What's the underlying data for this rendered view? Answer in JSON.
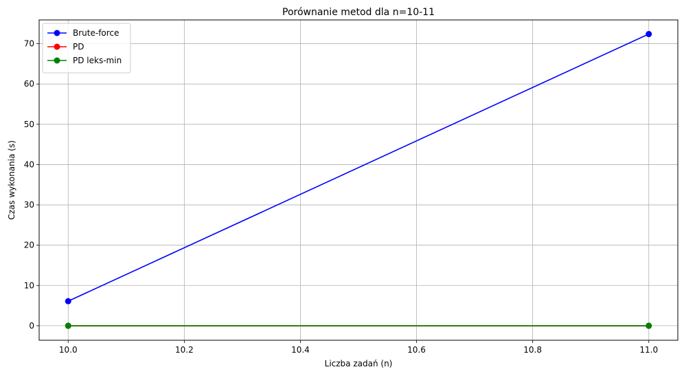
{
  "chart_data": {
    "type": "line",
    "title": "Porównanie metod dla n=10-11",
    "xlabel": "Liczba zadań (n)",
    "ylabel": "Czas wykonania (s)",
    "x": [
      10.0,
      11.0
    ],
    "xlim": [
      9.95,
      11.05
    ],
    "ylim": [
      -3.6,
      75.9
    ],
    "xticks": [
      10.0,
      10.2,
      10.4,
      10.6,
      10.8,
      11.0
    ],
    "xtick_labels": [
      "10.0",
      "10.2",
      "10.4",
      "10.6",
      "10.8",
      "11.0"
    ],
    "yticks": [
      0,
      10,
      20,
      30,
      40,
      50,
      60,
      70
    ],
    "ytick_labels": [
      "0",
      "10",
      "20",
      "30",
      "40",
      "50",
      "60",
      "70"
    ],
    "grid": true,
    "legend_position": "top-left",
    "series": [
      {
        "name": "Brute-force",
        "values": [
          6.1,
          72.4
        ],
        "color": "#0000ff"
      },
      {
        "name": "PD",
        "values": [
          0.0,
          0.0
        ],
        "color": "#ff0000"
      },
      {
        "name": "PD leks-min",
        "values": [
          0.0,
          0.0
        ],
        "color": "#008000"
      }
    ]
  }
}
